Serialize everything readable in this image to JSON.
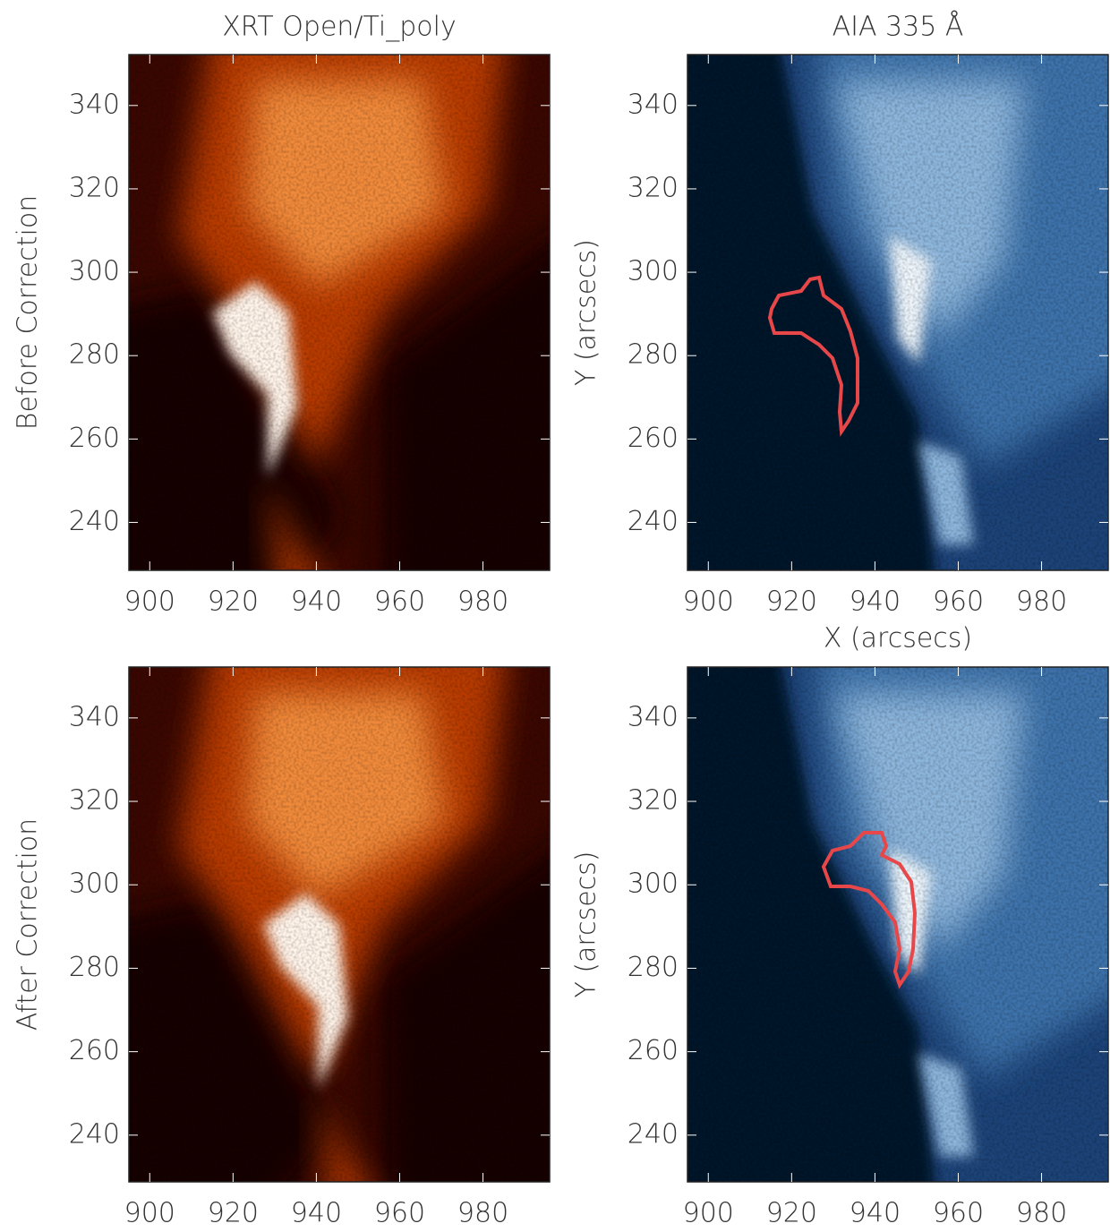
{
  "chart_data": [
    {
      "type": "image",
      "cmap": "heat",
      "title": "XRT Open/Ti_poly",
      "ylabel": "Before Correction",
      "xlim": [
        895,
        996
      ],
      "ylim": [
        228.5,
        352.2
      ],
      "xticks": [
        900,
        920,
        940,
        960,
        980
      ],
      "yticks": [
        240,
        260,
        280,
        300,
        320,
        340
      ],
      "loop_shift": 0
    },
    {
      "type": "image",
      "cmap": "blue",
      "title": "AIA 335 Å",
      "ylabel": "Y (arcsecs)",
      "xlabel": "X (arcsecs)",
      "xlim": [
        895,
        996
      ],
      "ylim": [
        228.5,
        352.2
      ],
      "xticks": [
        900,
        920,
        940,
        960,
        980
      ],
      "yticks": [
        240,
        260,
        280,
        300,
        320,
        340
      ]
    },
    {
      "type": "image",
      "cmap": "heat",
      "ylabel": "After Correction",
      "xlim": [
        895,
        996
      ],
      "ylim": [
        228.8,
        352.2
      ],
      "xticks": [
        900,
        920,
        940,
        960,
        980
      ],
      "yticks": [
        240,
        260,
        280,
        300,
        320,
        340
      ],
      "loop_shift": 1
    },
    {
      "type": "image",
      "cmap": "blue",
      "ylabel": "Y (arcsecs)",
      "xlim": [
        895,
        996
      ],
      "ylim": [
        228.8,
        352.2
      ],
      "xticks": [
        900,
        920,
        940,
        960,
        980
      ],
      "yticks": [
        240,
        260,
        280,
        300,
        320,
        340
      ]
    }
  ]
}
